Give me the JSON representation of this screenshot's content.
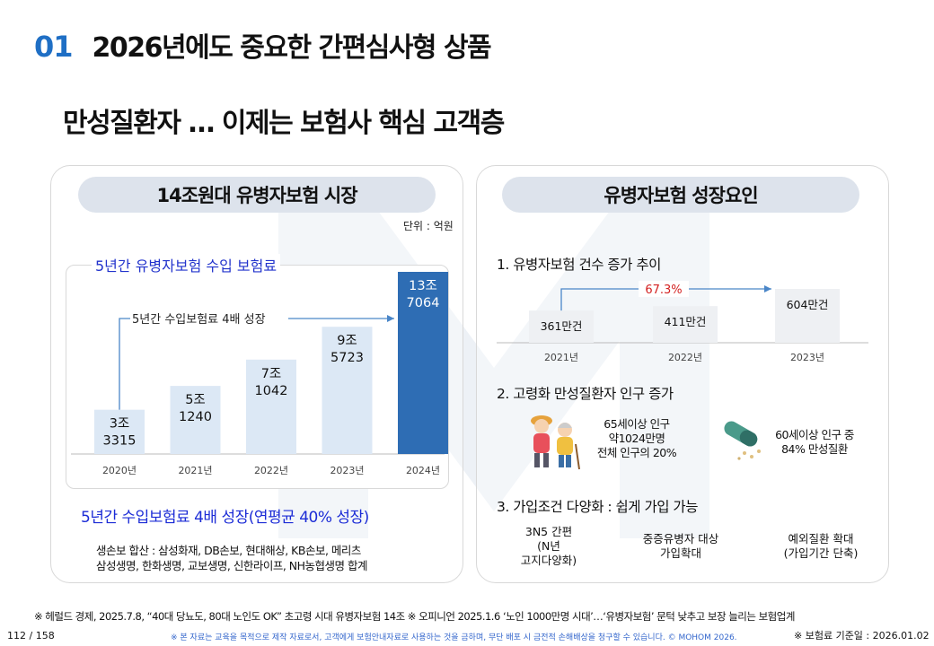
{
  "header": {
    "number": "01",
    "title": "2026년에도 중요한 간편심사형 상품"
  },
  "subtitle": "만성질환자 … 이제는 보험사 핵심 고객층",
  "left_panel": {
    "pill": "14조원대 유병자보험 시장",
    "unit": "단위 : 억원",
    "chart_title": "5년간 유병자보험 수입 보험료",
    "annotation": "5년간 수입보험료 4배 성장",
    "growth_note": "5년간 수입보험료 4배 성장(연평균 40% 성장)",
    "source_line1": "생손보 합산 : 삼성화재, DB손보, 현대해상, KB손보, 메리츠",
    "source_line2": "삼성생명, 한화생명, 교보생명, 신한라이프, NH농협생명 합계"
  },
  "chart_data": {
    "type": "bar",
    "categories": [
      "2020년",
      "2021년",
      "2022년",
      "2023년",
      "2024년"
    ],
    "values": [
      33315,
      51240,
      71042,
      95723,
      137064
    ],
    "labels": [
      [
        "3조",
        "3315"
      ],
      [
        "5조",
        "1240"
      ],
      [
        "7조",
        "1042"
      ],
      [
        "9조",
        "5723"
      ],
      [
        "13조",
        "7064"
      ]
    ],
    "ylim": [
      0,
      137064
    ],
    "colors": {
      "bar": "#dce8f5",
      "highlight": "#2e6db4",
      "arrow": "#4a86c8"
    }
  },
  "right_panel": {
    "pill": "유병자보험 성장요인",
    "section1": "1. 유병자보험 건수 증가 추이",
    "section2": "2. 고령화 만성질환자 인구 증가",
    "section3": "3. 가입조건 다양화 : 쉽게 가입 가능",
    "counts": {
      "categories": [
        "2021년",
        "2022년",
        "2023년"
      ],
      "values": [
        361,
        411,
        604
      ],
      "labels": [
        "361만건",
        "411만건",
        "604만건"
      ],
      "growth": "67.3%"
    },
    "stat1_lines": [
      "65세이상 인구",
      "약1024만명",
      "전체 인구의 20%"
    ],
    "stat2_lines": [
      "60세이상 인구 중",
      "84% 만성질환"
    ],
    "conditions": [
      {
        "lines": [
          "3N5 간편",
          "(N년",
          "고지다양화)"
        ]
      },
      {
        "lines": [
          "중증유병자 대상",
          "가입확대"
        ]
      },
      {
        "lines": [
          "예외질환 확대",
          "(가입기간 단축)"
        ]
      }
    ]
  },
  "footer": {
    "footnote": "※ 헤럴드 경제, 2025.7.8, “40대 당뇨도, 80대 노인도 OK” 초고령 시대 유병자보험 14조 ※ 오피니언 2025.1.6 ‘노인 1000만명 시대’…‘유병자보험’ 문턱 낮추고 보장 늘리는 보험업계",
    "page": "112 / 158",
    "disclaimer": "※ 본 자료는 교육을 목적으로 제작 자료로서, 고객에게 보험안내자료로 사용하는 것을 금하며, 무단 배포 시 금전적 손해배상을 청구할 수 있습니다. © MOHOM 2026.",
    "basis": "※ 보험료 기준일 : 2026.01.02"
  }
}
